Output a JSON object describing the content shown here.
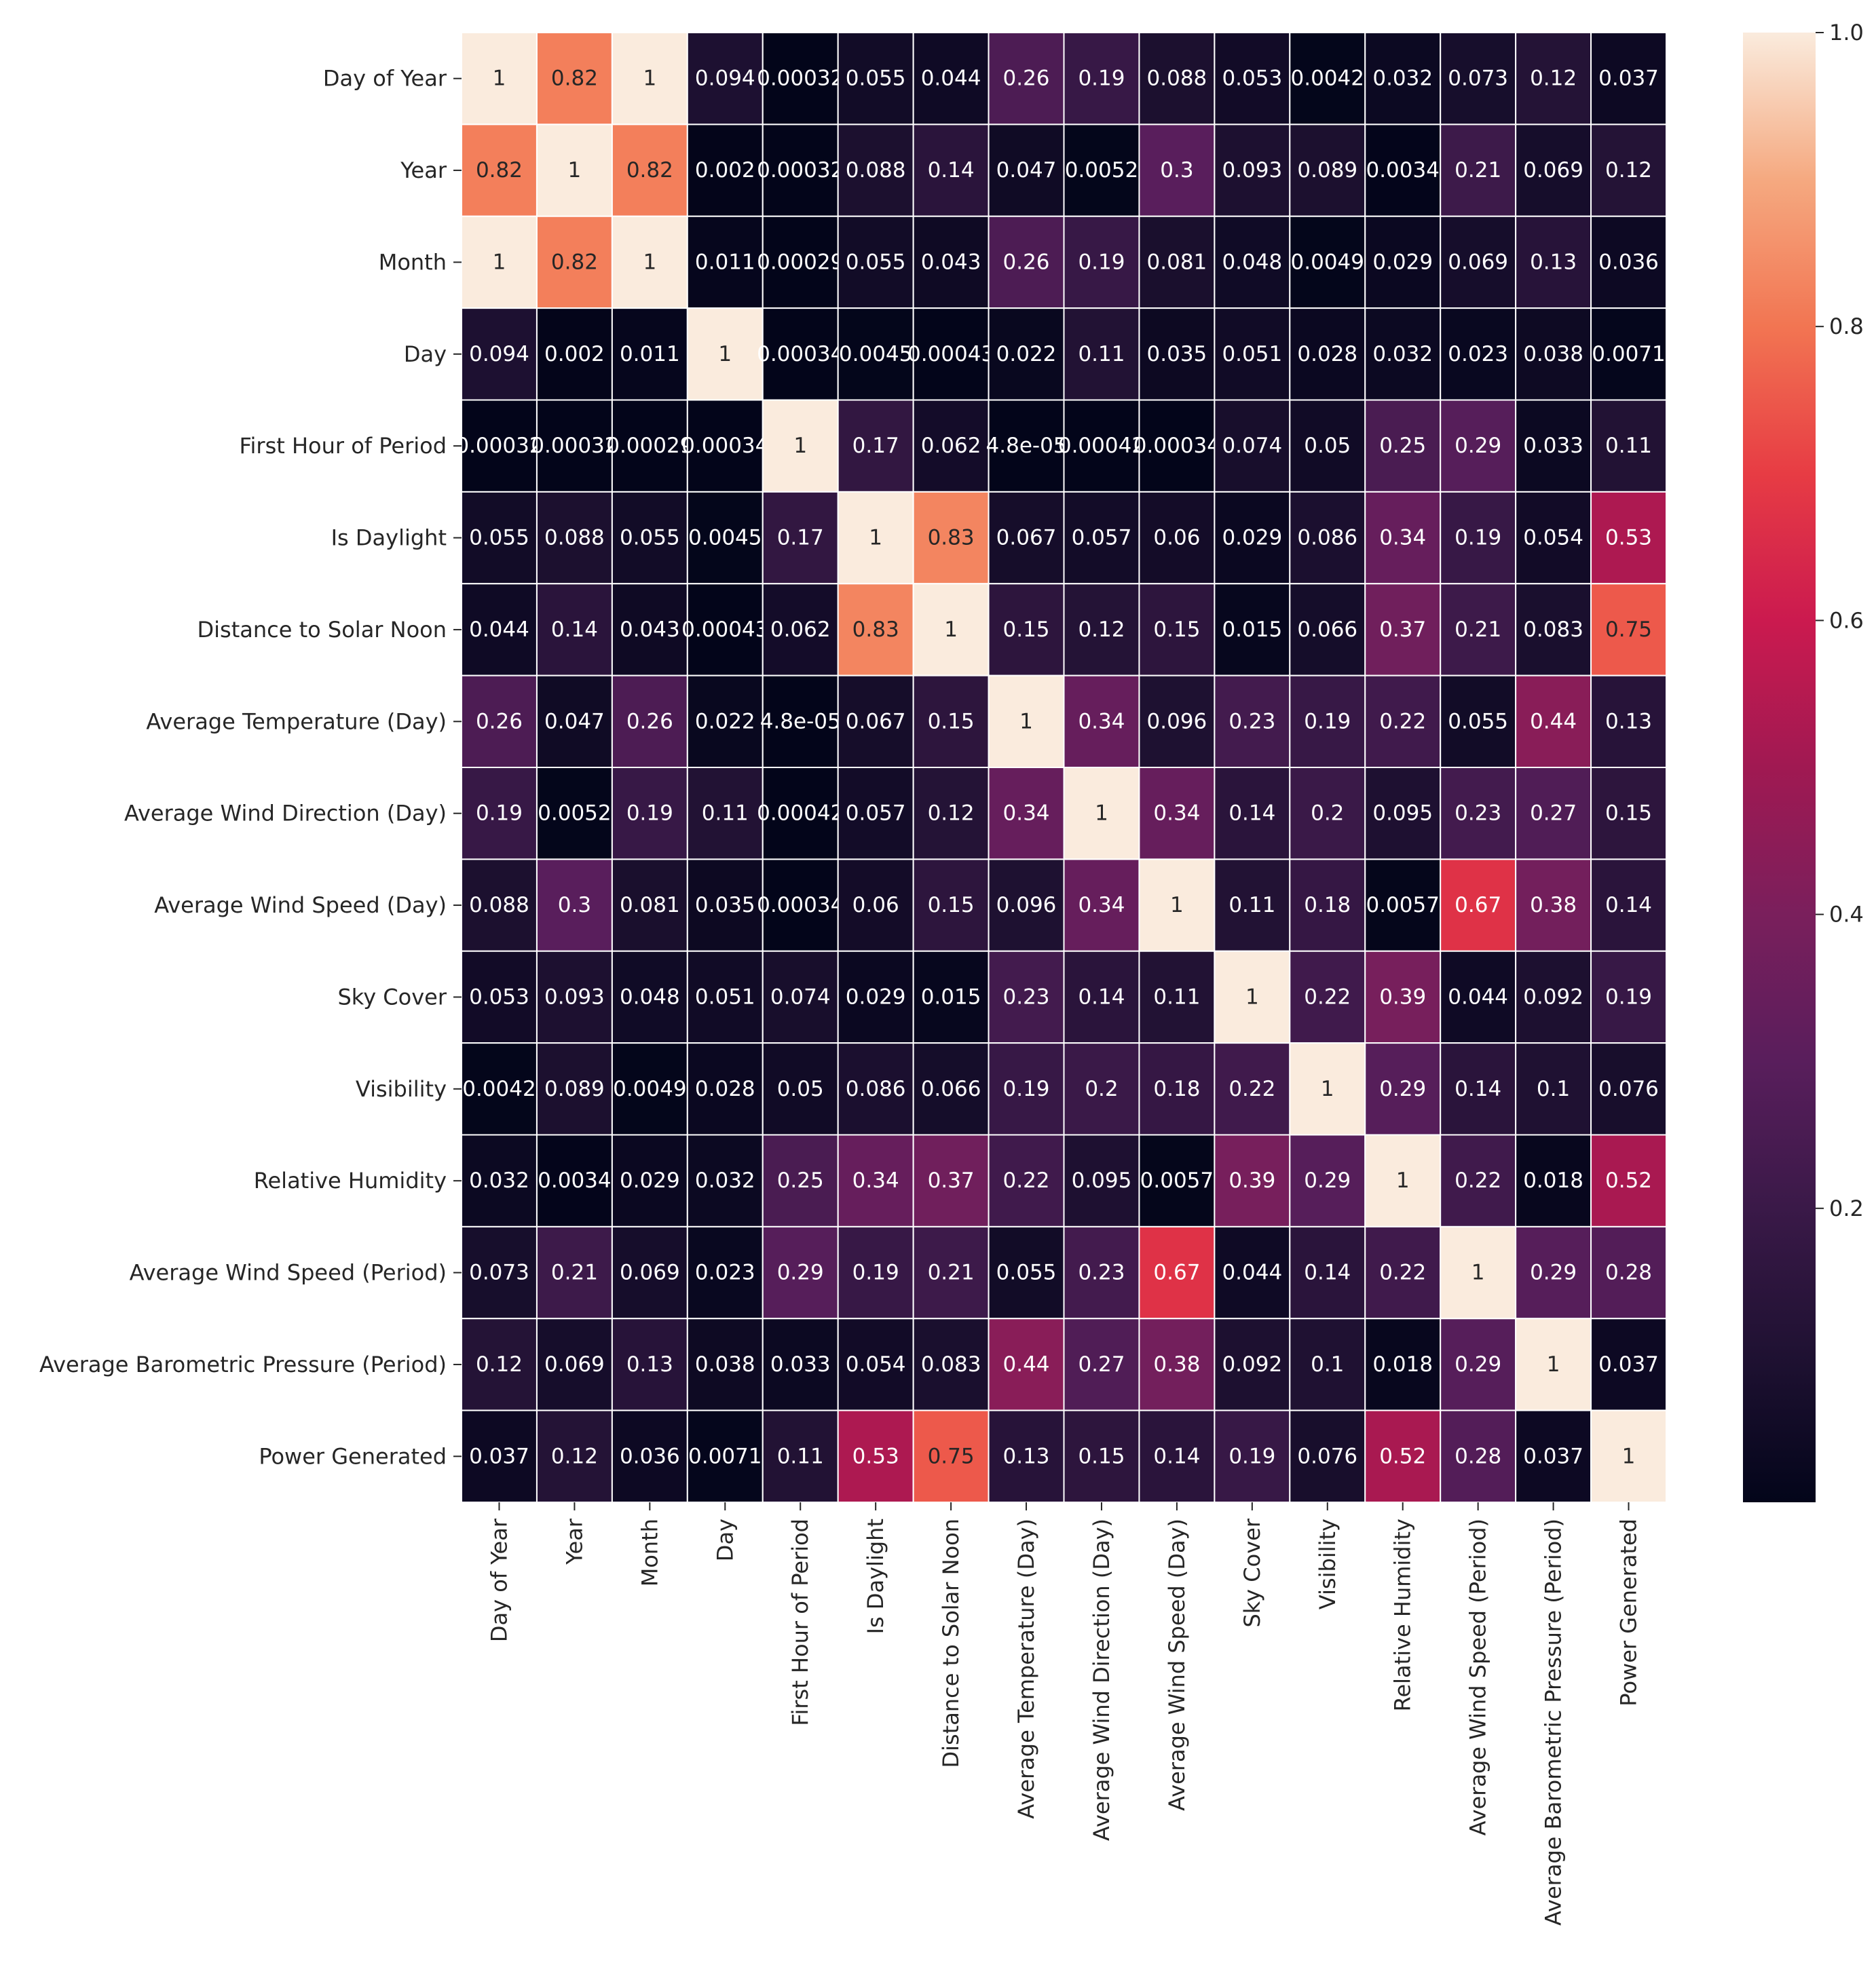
{
  "chart_data": {
    "type": "heatmap",
    "title": "",
    "xlabel": "",
    "ylabel": "",
    "colormap": "rocket",
    "color_range": [
      0.0,
      1.0
    ],
    "annotated": true,
    "linecolor": "#ffffff",
    "labels": [
      "Day of Year",
      "Year",
      "Month",
      "Day",
      "First Hour of Period",
      "Is Daylight",
      "Distance to Solar Noon",
      "Average Temperature (Day)",
      "Average Wind Direction (Day)",
      "Average Wind Speed (Day)",
      "Sky Cover",
      "Visibility",
      "Relative Humidity",
      "Average Wind Speed (Period)",
      "Average Barometric Pressure (Period)",
      "Power Generated"
    ],
    "values": [
      [
        1,
        0.82,
        1,
        0.094,
        0.00032,
        0.055,
        0.044,
        0.26,
        0.19,
        0.088,
        0.053,
        0.0042,
        0.032,
        0.073,
        0.12,
        0.037
      ],
      [
        0.82,
        1,
        0.82,
        0.002,
        0.00032,
        0.088,
        0.14,
        0.047,
        0.0052,
        0.3,
        0.093,
        0.089,
        0.0034,
        0.21,
        0.069,
        0.12
      ],
      [
        1,
        0.82,
        1,
        0.011,
        0.00029,
        0.055,
        0.043,
        0.26,
        0.19,
        0.081,
        0.048,
        0.0049,
        0.029,
        0.069,
        0.13,
        0.036
      ],
      [
        0.094,
        0.002,
        0.011,
        1,
        0.00034,
        0.0045,
        0.00043,
        0.022,
        0.11,
        0.035,
        0.051,
        0.028,
        0.032,
        0.023,
        0.038,
        0.0071
      ],
      [
        0.00032,
        0.00032,
        0.00029,
        0.00034,
        1,
        0.17,
        0.062,
        4.8e-05,
        0.00042,
        0.00034,
        0.074,
        0.05,
        0.25,
        0.29,
        0.033,
        0.11
      ],
      [
        0.055,
        0.088,
        0.055,
        0.0045,
        0.17,
        1,
        0.83,
        0.067,
        0.057,
        0.06,
        0.029,
        0.086,
        0.34,
        0.19,
        0.054,
        0.53
      ],
      [
        0.044,
        0.14,
        0.043,
        0.00043,
        0.062,
        0.83,
        1,
        0.15,
        0.12,
        0.15,
        0.015,
        0.066,
        0.37,
        0.21,
        0.083,
        0.75
      ],
      [
        0.26,
        0.047,
        0.26,
        0.022,
        4.8e-05,
        0.067,
        0.15,
        1,
        0.34,
        0.096,
        0.23,
        0.19,
        0.22,
        0.055,
        0.44,
        0.13
      ],
      [
        0.19,
        0.0052,
        0.19,
        0.11,
        0.00042,
        0.057,
        0.12,
        0.34,
        1,
        0.34,
        0.14,
        0.2,
        0.095,
        0.23,
        0.27,
        0.15
      ],
      [
        0.088,
        0.3,
        0.081,
        0.035,
        0.00034,
        0.06,
        0.15,
        0.096,
        0.34,
        1,
        0.11,
        0.18,
        0.0057,
        0.67,
        0.38,
        0.14
      ],
      [
        0.053,
        0.093,
        0.048,
        0.051,
        0.074,
        0.029,
        0.015,
        0.23,
        0.14,
        0.11,
        1,
        0.22,
        0.39,
        0.044,
        0.092,
        0.19
      ],
      [
        0.0042,
        0.089,
        0.0049,
        0.028,
        0.05,
        0.086,
        0.066,
        0.19,
        0.2,
        0.18,
        0.22,
        1,
        0.29,
        0.14,
        0.1,
        0.076
      ],
      [
        0.032,
        0.0034,
        0.029,
        0.032,
        0.25,
        0.34,
        0.37,
        0.22,
        0.095,
        0.0057,
        0.39,
        0.29,
        1,
        0.22,
        0.018,
        0.52
      ],
      [
        0.073,
        0.21,
        0.069,
        0.023,
        0.29,
        0.19,
        0.21,
        0.055,
        0.23,
        0.67,
        0.044,
        0.14,
        0.22,
        1,
        0.29,
        0.28
      ],
      [
        0.12,
        0.069,
        0.13,
        0.038,
        0.033,
        0.054,
        0.083,
        0.44,
        0.27,
        0.38,
        0.092,
        0.1,
        0.018,
        0.29,
        1,
        0.037
      ],
      [
        0.037,
        0.12,
        0.036,
        0.0071,
        0.11,
        0.53,
        0.75,
        0.13,
        0.15,
        0.14,
        0.19,
        0.076,
        0.52,
        0.28,
        0.037,
        1
      ]
    ],
    "annotations": [
      [
        "1",
        "0.82",
        "1",
        "0.094",
        "0.00032",
        "0.055",
        "0.044",
        "0.26",
        "0.19",
        "0.088",
        "0.053",
        "0.0042",
        "0.032",
        "0.073",
        "0.12",
        "0.037"
      ],
      [
        "0.82",
        "1",
        "0.82",
        "0.002",
        "0.00032",
        "0.088",
        "0.14",
        "0.047",
        "0.0052",
        "0.3",
        "0.093",
        "0.089",
        "0.0034",
        "0.21",
        "0.069",
        "0.12"
      ],
      [
        "1",
        "0.82",
        "1",
        "0.011",
        "0.00029",
        "0.055",
        "0.043",
        "0.26",
        "0.19",
        "0.081",
        "0.048",
        "0.0049",
        "0.029",
        "0.069",
        "0.13",
        "0.036"
      ],
      [
        "0.094",
        "0.002",
        "0.011",
        "1",
        "0.00034",
        "0.0045",
        "0.00043",
        "0.022",
        "0.11",
        "0.035",
        "0.051",
        "0.028",
        "0.032",
        "0.023",
        "0.038",
        "0.0071"
      ],
      [
        "0.00032",
        "0.00032",
        "0.00029",
        "0.00034",
        "1",
        "0.17",
        "0.062",
        "4.8e-05",
        "0.00042",
        "0.00034",
        "0.074",
        "0.05",
        "0.25",
        "0.29",
        "0.033",
        "0.11"
      ],
      [
        "0.055",
        "0.088",
        "0.055",
        "0.0045",
        "0.17",
        "1",
        "0.83",
        "0.067",
        "0.057",
        "0.06",
        "0.029",
        "0.086",
        "0.34",
        "0.19",
        "0.054",
        "0.53"
      ],
      [
        "0.044",
        "0.14",
        "0.043",
        "0.00043",
        "0.062",
        "0.83",
        "1",
        "0.15",
        "0.12",
        "0.15",
        "0.015",
        "0.066",
        "0.37",
        "0.21",
        "0.083",
        "0.75"
      ],
      [
        "0.26",
        "0.047",
        "0.26",
        "0.022",
        "4.8e-05",
        "0.067",
        "0.15",
        "1",
        "0.34",
        "0.096",
        "0.23",
        "0.19",
        "0.22",
        "0.055",
        "0.44",
        "0.13"
      ],
      [
        "0.19",
        "0.0052",
        "0.19",
        "0.11",
        "0.00042",
        "0.057",
        "0.12",
        "0.34",
        "1",
        "0.34",
        "0.14",
        "0.2",
        "0.095",
        "0.23",
        "0.27",
        "0.15"
      ],
      [
        "0.088",
        "0.3",
        "0.081",
        "0.035",
        "0.00034",
        "0.06",
        "0.15",
        "0.096",
        "0.34",
        "1",
        "0.11",
        "0.18",
        "0.0057",
        "0.67",
        "0.38",
        "0.14"
      ],
      [
        "0.053",
        "0.093",
        "0.048",
        "0.051",
        "0.074",
        "0.029",
        "0.015",
        "0.23",
        "0.14",
        "0.11",
        "1",
        "0.22",
        "0.39",
        "0.044",
        "0.092",
        "0.19"
      ],
      [
        "0.0042",
        "0.089",
        "0.0049",
        "0.028",
        "0.05",
        "0.086",
        "0.066",
        "0.19",
        "0.2",
        "0.18",
        "0.22",
        "1",
        "0.29",
        "0.14",
        "0.1",
        "0.076"
      ],
      [
        "0.032",
        "0.0034",
        "0.029",
        "0.032",
        "0.25",
        "0.34",
        "0.37",
        "0.22",
        "0.095",
        "0.0057",
        "0.39",
        "0.29",
        "1",
        "0.22",
        "0.018",
        "0.52"
      ],
      [
        "0.073",
        "0.21",
        "0.069",
        "0.023",
        "0.29",
        "0.19",
        "0.21",
        "0.055",
        "0.23",
        "0.67",
        "0.044",
        "0.14",
        "0.22",
        "1",
        "0.29",
        "0.28"
      ],
      [
        "0.12",
        "0.069",
        "0.13",
        "0.038",
        "0.033",
        "0.054",
        "0.083",
        "0.44",
        "0.27",
        "0.38",
        "0.092",
        "0.1",
        "0.018",
        "0.29",
        "1",
        "0.037"
      ],
      [
        "0.037",
        "0.12",
        "0.036",
        "0.0071",
        "0.11",
        "0.53",
        "0.75",
        "0.13",
        "0.15",
        "0.14",
        "0.19",
        "0.076",
        "0.52",
        "0.28",
        "0.037",
        "1"
      ]
    ],
    "colorbar": {
      "range": [
        0.0,
        1.0
      ],
      "ticks": [
        0.2,
        0.4,
        0.6,
        0.8,
        1.0
      ],
      "tick_labels": [
        "0.2",
        "0.4",
        "0.6",
        "0.8",
        "1.0"
      ]
    }
  }
}
